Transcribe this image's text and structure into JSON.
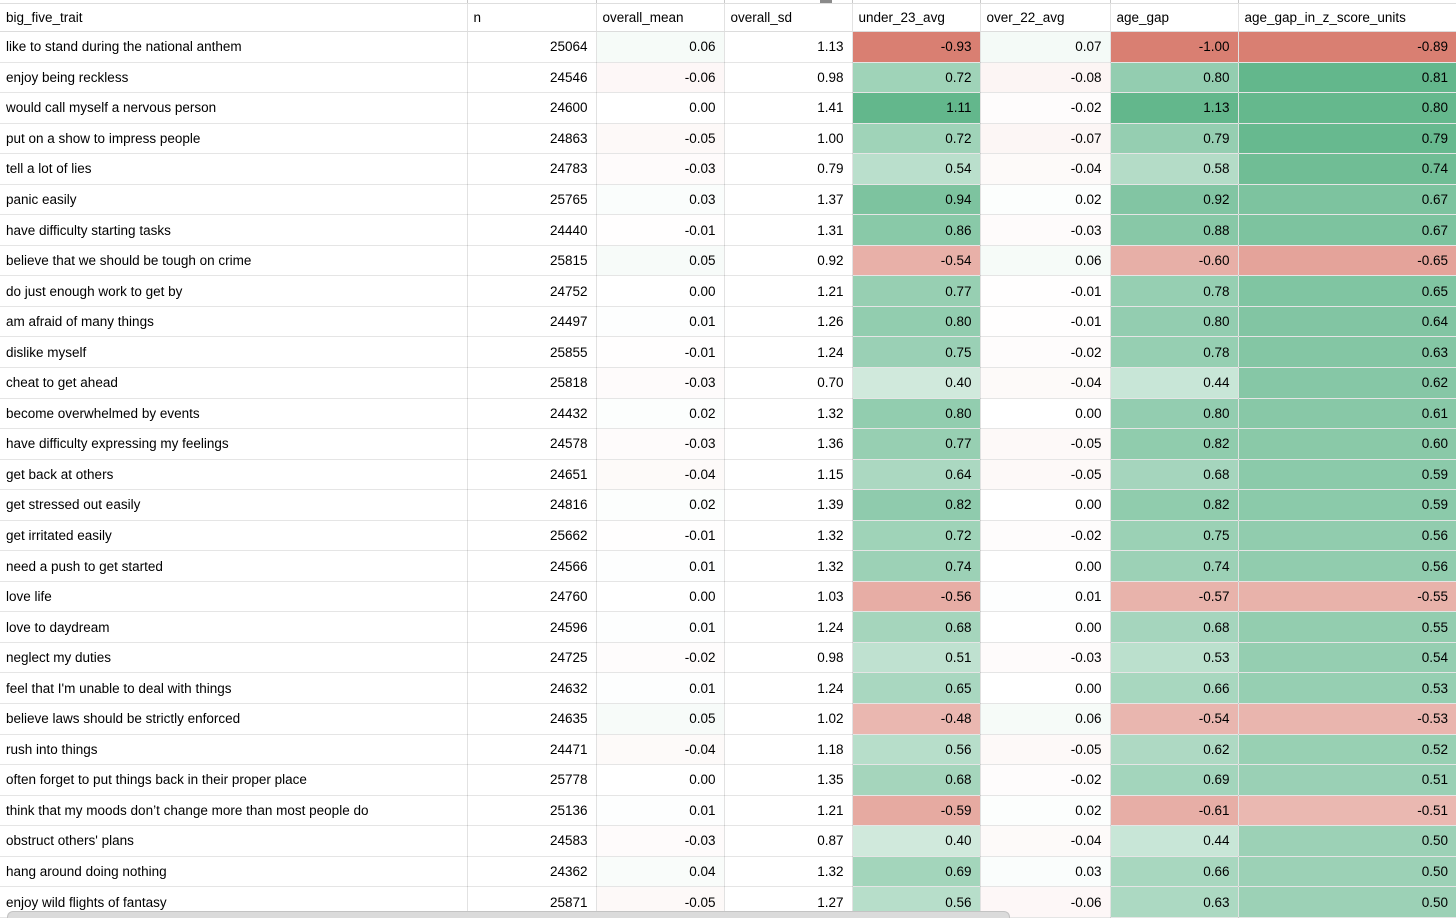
{
  "table": {
    "columns": [
      {
        "key": "big_five_trait",
        "label": "big_five_trait",
        "align": "left"
      },
      {
        "key": "n",
        "label": "n",
        "align": "right"
      },
      {
        "key": "overall_mean",
        "label": "overall_mean",
        "align": "right"
      },
      {
        "key": "overall_sd",
        "label": "overall_sd",
        "align": "right"
      },
      {
        "key": "under_23_avg",
        "label": "under_23_avg",
        "align": "right"
      },
      {
        "key": "over_22_avg",
        "label": "over_22_avg",
        "align": "right"
      },
      {
        "key": "age_gap",
        "label": "age_gap",
        "align": "right"
      },
      {
        "key": "age_gap_in_z_score_units",
        "label": "age_gap_in_z_score_units",
        "align": "right"
      }
    ],
    "rows": [
      [
        "like to stand during the national anthem",
        "25064",
        "0.06",
        "1.13",
        "-0.93",
        "0.07",
        "-1.00",
        "-0.89"
      ],
      [
        "enjoy being reckless",
        "24546",
        "-0.06",
        "0.98",
        "0.72",
        "-0.08",
        "0.80",
        "0.81"
      ],
      [
        "would call myself a nervous person",
        "24600",
        "0.00",
        "1.41",
        "1.11",
        "-0.02",
        "1.13",
        "0.80"
      ],
      [
        "put on a show to impress people",
        "24863",
        "-0.05",
        "1.00",
        "0.72",
        "-0.07",
        "0.79",
        "0.79"
      ],
      [
        "tell a lot of lies",
        "24783",
        "-0.03",
        "0.79",
        "0.54",
        "-0.04",
        "0.58",
        "0.74"
      ],
      [
        "panic easily",
        "25765",
        "0.03",
        "1.37",
        "0.94",
        "0.02",
        "0.92",
        "0.67"
      ],
      [
        "have difficulty starting tasks",
        "24440",
        "-0.01",
        "1.31",
        "0.86",
        "-0.03",
        "0.88",
        "0.67"
      ],
      [
        "believe that we should be tough on crime",
        "25815",
        "0.05",
        "0.92",
        "-0.54",
        "0.06",
        "-0.60",
        "-0.65"
      ],
      [
        "do just enough work to get by",
        "24752",
        "0.00",
        "1.21",
        "0.77",
        "-0.01",
        "0.78",
        "0.65"
      ],
      [
        "am afraid of many things",
        "24497",
        "0.01",
        "1.26",
        "0.80",
        "-0.01",
        "0.80",
        "0.64"
      ],
      [
        "dislike myself",
        "25855",
        "-0.01",
        "1.24",
        "0.75",
        "-0.02",
        "0.78",
        "0.63"
      ],
      [
        "cheat to get ahead",
        "25818",
        "-0.03",
        "0.70",
        "0.40",
        "-0.04",
        "0.44",
        "0.62"
      ],
      [
        "become overwhelmed by events",
        "24432",
        "0.02",
        "1.32",
        "0.80",
        "0.00",
        "0.80",
        "0.61"
      ],
      [
        "have difficulty expressing my feelings",
        "24578",
        "-0.03",
        "1.36",
        "0.77",
        "-0.05",
        "0.82",
        "0.60"
      ],
      [
        "get back at others",
        "24651",
        "-0.04",
        "1.15",
        "0.64",
        "-0.05",
        "0.68",
        "0.59"
      ],
      [
        "get stressed out easily",
        "24816",
        "0.02",
        "1.39",
        "0.82",
        "0.00",
        "0.82",
        "0.59"
      ],
      [
        "get irritated easily",
        "25662",
        "-0.01",
        "1.32",
        "0.72",
        "-0.02",
        "0.75",
        "0.56"
      ],
      [
        "need a push to get started",
        "24566",
        "0.01",
        "1.32",
        "0.74",
        "0.00",
        "0.74",
        "0.56"
      ],
      [
        "love life",
        "24760",
        "0.00",
        "1.03",
        "-0.56",
        "0.01",
        "-0.57",
        "-0.55"
      ],
      [
        "love to daydream",
        "24596",
        "0.01",
        "1.24",
        "0.68",
        "0.00",
        "0.68",
        "0.55"
      ],
      [
        "neglect my duties",
        "24725",
        "-0.02",
        "0.98",
        "0.51",
        "-0.03",
        "0.53",
        "0.54"
      ],
      [
        "feel that I'm unable to deal with things",
        "24632",
        "0.01",
        "1.24",
        "0.65",
        "0.00",
        "0.66",
        "0.53"
      ],
      [
        "believe laws should be strictly enforced",
        "24635",
        "0.05",
        "1.02",
        "-0.48",
        "0.06",
        "-0.54",
        "-0.53"
      ],
      [
        "rush into things",
        "24471",
        "-0.04",
        "1.18",
        "0.56",
        "-0.05",
        "0.62",
        "0.52"
      ],
      [
        "often forget to put things back in their proper place",
        "25778",
        "0.00",
        "1.35",
        "0.68",
        "-0.02",
        "0.69",
        "0.51"
      ],
      [
        "think that my moods don’t change more than most people do",
        "25136",
        "0.01",
        "1.21",
        "-0.59",
        "0.02",
        "-0.61",
        "-0.51"
      ],
      [
        "obstruct others' plans",
        "24583",
        "-0.03",
        "0.87",
        "0.40",
        "-0.04",
        "0.44",
        "0.50"
      ],
      [
        "hang around doing nothing",
        "24362",
        "0.04",
        "1.32",
        "0.69",
        "0.03",
        "0.66",
        "0.50"
      ],
      [
        "enjoy wild flights of fantasy",
        "25871",
        "-0.05",
        "1.27",
        "0.56",
        "-0.06",
        "0.63",
        "0.50"
      ]
    ]
  },
  "conditional_formatting": {
    "negative_color": "#D97F72",
    "positive_color": "#63B78C",
    "neutral_color": "#FFFFFF",
    "scales": {
      "overall_mean": {
        "min": -1.0,
        "mid": 0.0,
        "max": 1.0
      },
      "under_23_avg": {
        "min": -0.93,
        "mid": 0.09,
        "max": 1.11
      },
      "over_22_avg": {
        "min": -1.0,
        "mid": 0.0,
        "max": 1.0
      },
      "age_gap": {
        "min": -1.0,
        "mid": 0.065,
        "max": 1.13
      },
      "age_gap_in_z_score_units": {
        "min": -0.89,
        "mid": -0.04,
        "max": 0.81
      }
    }
  }
}
